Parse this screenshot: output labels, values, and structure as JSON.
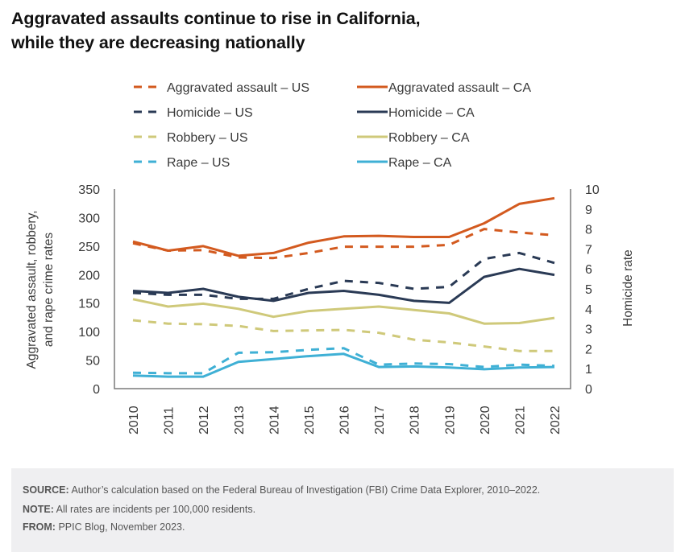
{
  "title": {
    "line1": "Aggravated assaults continue to rise in California,",
    "line2": "while they are decreasing nationally"
  },
  "footer": {
    "source_label": "SOURCE:",
    "source_text": " Author’s calculation based on the Federal Bureau of Investigation (FBI) Crime Data Explorer, 2010–2022.",
    "note_label": "NOTE:",
    "note_text": " All rates are incidents per 100,000 residents.",
    "from_label": "FROM:",
    "from_text": " PPIC Blog, November 2023."
  },
  "chart_data": {
    "type": "line",
    "title": "Aggravated assaults continue to rise in California, while they are decreasing nationally",
    "x": [
      "2010",
      "2011",
      "2012",
      "2013",
      "2014",
      "2015",
      "2016",
      "2017",
      "2018",
      "2019",
      "2020",
      "2021",
      "2022"
    ],
    "xlabel": "",
    "ylabel": "Aggravated assault, robbery, and rape crime rates",
    "ylabel_lines": [
      "Aggravated assault, robbery,",
      "and rape crime rates"
    ],
    "ylim": [
      0,
      350
    ],
    "yticks": [
      0,
      50,
      100,
      150,
      200,
      250,
      300,
      350
    ],
    "y2label": "Homicide rate",
    "y2lim": [
      0,
      10
    ],
    "y2ticks": [
      0,
      1,
      2,
      3,
      4,
      5,
      6,
      7,
      8,
      9,
      10
    ],
    "grid": false,
    "legend_position": "top",
    "series": [
      {
        "name": "Aggravated assault – US",
        "axis": "left",
        "style": "dashed",
        "color": "#d35a1f",
        "values": [
          255,
          242,
          243,
          230,
          229,
          238,
          249,
          249,
          249,
          252,
          280,
          274,
          269
        ]
      },
      {
        "name": "Aggravated assault – CA",
        "axis": "left",
        "style": "solid",
        "color": "#d35a1f",
        "values": [
          258,
          242,
          250,
          233,
          238,
          256,
          267,
          268,
          266,
          266,
          290,
          324,
          334
        ]
      },
      {
        "name": "Homicide – US",
        "axis": "right",
        "style": "dashed",
        "color": "#2a3a55",
        "values": [
          4.8,
          4.7,
          4.7,
          4.5,
          4.5,
          5.0,
          5.4,
          5.3,
          5.0,
          5.1,
          6.5,
          6.8,
          6.3
        ]
      },
      {
        "name": "Homicide – CA",
        "axis": "right",
        "style": "solid",
        "color": "#2a3a55",
        "values": [
          4.9,
          4.8,
          5.0,
          4.6,
          4.4,
          4.8,
          4.9,
          4.7,
          4.4,
          4.3,
          5.6,
          6.0,
          5.7
        ]
      },
      {
        "name": "Robbery – US",
        "axis": "left",
        "style": "dashed",
        "color": "#cfc97a",
        "values": [
          120,
          114,
          113,
          110,
          101,
          102,
          103,
          98,
          86,
          81,
          74,
          66,
          66
        ]
      },
      {
        "name": "Robbery – CA",
        "axis": "left",
        "style": "solid",
        "color": "#cfc97a",
        "values": [
          157,
          144,
          149,
          140,
          126,
          136,
          140,
          144,
          138,
          132,
          114,
          115,
          124
        ]
      },
      {
        "name": "Rape – US",
        "axis": "left",
        "style": "dashed",
        "color": "#3fb0d5",
        "values": [
          28,
          27,
          27,
          63,
          64,
          68,
          71,
          42,
          44,
          43,
          38,
          42,
          40
        ]
      },
      {
        "name": "Rape – CA",
        "axis": "left",
        "style": "solid",
        "color": "#3fb0d5",
        "values": [
          23,
          21,
          21,
          47,
          52,
          57,
          61,
          38,
          39,
          37,
          34,
          37,
          38
        ]
      }
    ]
  }
}
